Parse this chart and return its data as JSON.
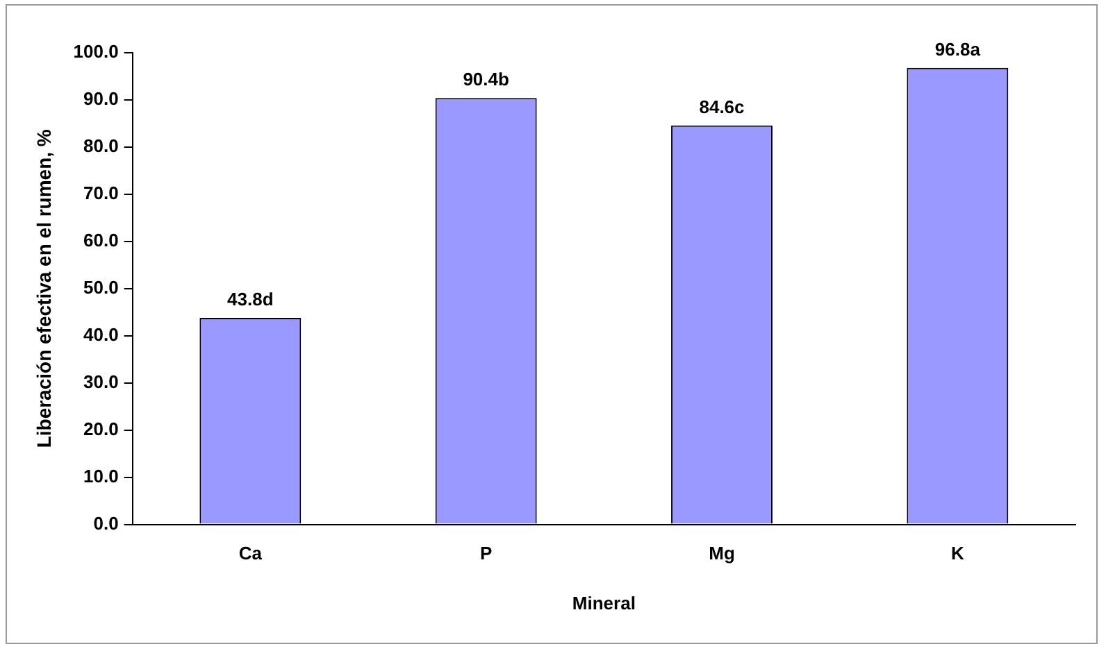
{
  "chart_data": {
    "type": "bar",
    "xlabel": "Mineral",
    "ylabel": "Liberación efectiva en el rumen, %",
    "categories": [
      "Ca",
      "P",
      "Mg",
      "K"
    ],
    "values": [
      43.8,
      90.4,
      84.6,
      96.8
    ],
    "value_labels": [
      "43.8d",
      "90.4b",
      "84.6c",
      "96.8a"
    ],
    "color": "#9999ff",
    "ylim": [
      0,
      100
    ],
    "yticks": [
      {
        "value": 0,
        "label": "0.0"
      },
      {
        "value": 10,
        "label": "10.0"
      },
      {
        "value": 20,
        "label": "20.0"
      },
      {
        "value": 30,
        "label": "30.0"
      },
      {
        "value": 40,
        "label": "40.0"
      },
      {
        "value": 50,
        "label": "50.0"
      },
      {
        "value": 60,
        "label": "60.0"
      },
      {
        "value": 70,
        "label": "70.0"
      },
      {
        "value": 80,
        "label": "80.0"
      },
      {
        "value": 90,
        "label": "90.0"
      },
      {
        "value": 100,
        "label": "100.0"
      }
    ],
    "grid": false,
    "legend": false
  }
}
